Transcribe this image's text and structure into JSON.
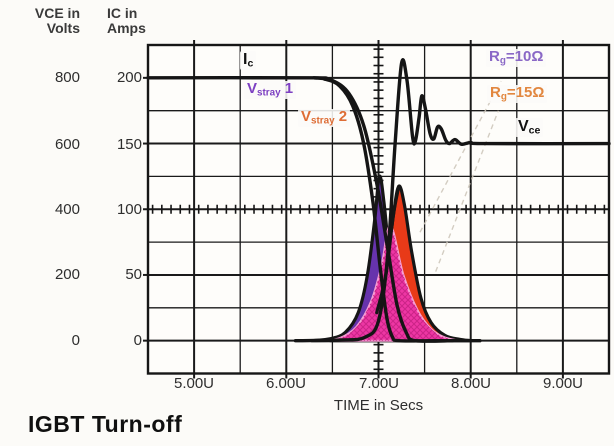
{
  "title": "IGBT Turn-off",
  "chart_data": {
    "type": "line",
    "title": "IGBT Turn-off",
    "xlabel": "TIME in Secs",
    "x_ticks": [
      "5.00U",
      "6.00U",
      "7.00U",
      "8.00U",
      "9.00U"
    ],
    "x_range_us": [
      4.5,
      9.5
    ],
    "v_range": [
      900,
      -100
    ],
    "grid": {
      "x_divisions": 10,
      "y_divisions": 10,
      "crosshair_x_us": 7.0,
      "crosshair_v": 400
    },
    "y_axis_vce": {
      "line1": "VCE in",
      "line2": "Volts",
      "ticks": [
        "800",
        "600",
        "400",
        "200",
        "0"
      ]
    },
    "y_axis_ic": {
      "line1": "IC in",
      "line2": "Amps",
      "ticks": [
        "200",
        "150",
        "100",
        "50",
        "0"
      ]
    },
    "labels": {
      "ic": {
        "main": "I",
        "sub": "c",
        "suffix": "",
        "color": "#111111"
      },
      "vstray1": {
        "main": "V",
        "sub": "stray",
        "suffix": " 1",
        "color": "#7d40c2"
      },
      "vstray2": {
        "main": "V",
        "sub": "stray",
        "suffix": " 2",
        "color": "#de6d35"
      },
      "rg10": {
        "main": "R",
        "sub": "g",
        "suffix": "=10Ω",
        "color": "#8a68c6"
      },
      "rg15": {
        "main": "R",
        "sub": "g",
        "suffix": "=15Ω",
        "color": "#e2873f"
      },
      "vce": {
        "main": "V",
        "sub": "ce",
        "suffix": "",
        "color": "#111111"
      }
    },
    "series": [
      {
        "name": "ic-collector-current",
        "stroke": "#151515",
        "width": 3.4,
        "points": [
          [
            4.5,
            800
          ],
          [
            6.25,
            800
          ],
          [
            6.42,
            796
          ],
          [
            6.58,
            775
          ],
          [
            6.72,
            715
          ],
          [
            6.84,
            600
          ],
          [
            6.94,
            420
          ],
          [
            7.02,
            220
          ],
          [
            7.09,
            70
          ],
          [
            7.15,
            12
          ],
          [
            7.22,
            0
          ],
          [
            7.6,
            0
          ],
          [
            8.1,
            0
          ]
        ]
      },
      {
        "name": "ic-collector-current-slow",
        "stroke": "#151515",
        "width": 3.4,
        "points": [
          [
            6.3,
            800
          ],
          [
            6.5,
            792
          ],
          [
            6.68,
            752
          ],
          [
            6.84,
            655
          ],
          [
            6.98,
            480
          ],
          [
            7.1,
            280
          ],
          [
            7.2,
            110
          ],
          [
            7.3,
            25
          ],
          [
            7.4,
            0
          ],
          [
            7.8,
            0
          ]
        ]
      },
      {
        "name": "vce-with-ringing",
        "stroke": "#151515",
        "width": 3.4,
        "points": [
          [
            6.1,
            0
          ],
          [
            6.6,
            2
          ],
          [
            6.85,
            10
          ],
          [
            7.0,
            60
          ],
          [
            7.1,
            260
          ],
          [
            7.18,
            600
          ],
          [
            7.25,
            845
          ],
          [
            7.31,
            790
          ],
          [
            7.37,
            620
          ],
          [
            7.4,
            608
          ],
          [
            7.44,
            680
          ],
          [
            7.47,
            745
          ],
          [
            7.51,
            705
          ],
          [
            7.56,
            630
          ],
          [
            7.6,
            614
          ],
          [
            7.64,
            650
          ],
          [
            7.68,
            645
          ],
          [
            7.73,
            610
          ],
          [
            7.77,
            600
          ],
          [
            7.83,
            612
          ],
          [
            7.9,
            598
          ],
          [
            8.0,
            603
          ],
          [
            8.15,
            600
          ],
          [
            9.5,
            600
          ]
        ]
      }
    ],
    "pulses": [
      {
        "name": "vstray1-spike",
        "fill": "#6733ac",
        "stroke": "#161616",
        "stroke_width": 3.2,
        "hatch": false,
        "points": [
          [
            6.28,
            0
          ],
          [
            6.48,
            6
          ],
          [
            6.64,
            25
          ],
          [
            6.78,
            85
          ],
          [
            6.88,
            200
          ],
          [
            6.96,
            370
          ],
          [
            7.01,
            500
          ],
          [
            7.06,
            420
          ],
          [
            7.12,
            250
          ],
          [
            7.19,
            105
          ],
          [
            7.27,
            32
          ],
          [
            7.37,
            7
          ],
          [
            7.48,
            0
          ]
        ]
      },
      {
        "name": "vstray2-spike",
        "fill": "#e83a18",
        "stroke": "#161616",
        "stroke_width": 3.2,
        "hatch": false,
        "points": [
          [
            6.48,
            0
          ],
          [
            6.68,
            7
          ],
          [
            6.84,
            28
          ],
          [
            6.98,
            85
          ],
          [
            7.08,
            200
          ],
          [
            7.16,
            380
          ],
          [
            7.22,
            470
          ],
          [
            7.28,
            415
          ],
          [
            7.36,
            270
          ],
          [
            7.46,
            130
          ],
          [
            7.57,
            55
          ],
          [
            7.72,
            16
          ],
          [
            7.88,
            4
          ],
          [
            8.0,
            0
          ]
        ]
      },
      {
        "name": "overlap-energy",
        "fill": "#ee36a4",
        "stroke": "#f79fd4",
        "stroke_width": 2,
        "hatch": true,
        "points": [
          [
            6.38,
            0
          ],
          [
            6.58,
            8
          ],
          [
            6.76,
            42
          ],
          [
            6.92,
            120
          ],
          [
            7.03,
            225
          ],
          [
            7.13,
            350
          ],
          [
            7.27,
            200
          ],
          [
            7.42,
            95
          ],
          [
            7.57,
            36
          ],
          [
            7.72,
            10
          ],
          [
            7.88,
            0
          ]
        ]
      },
      {
        "name": "vstray2-left-edge",
        "fill": "none",
        "stroke": "#161616",
        "stroke_width": 3.2,
        "hatch": false,
        "points": [
          [
            6.98,
            85
          ],
          [
            7.08,
            200
          ],
          [
            7.16,
            380
          ],
          [
            7.22,
            470
          ]
        ]
      }
    ],
    "leader_lines": [
      {
        "name": "leader-to-rg10",
        "points": [
          [
            7.45,
            330
          ],
          [
            8.33,
            790
          ]
        ]
      },
      {
        "name": "leader-to-rg15",
        "points": [
          [
            7.62,
            210
          ],
          [
            8.3,
            700
          ]
        ]
      }
    ]
  }
}
